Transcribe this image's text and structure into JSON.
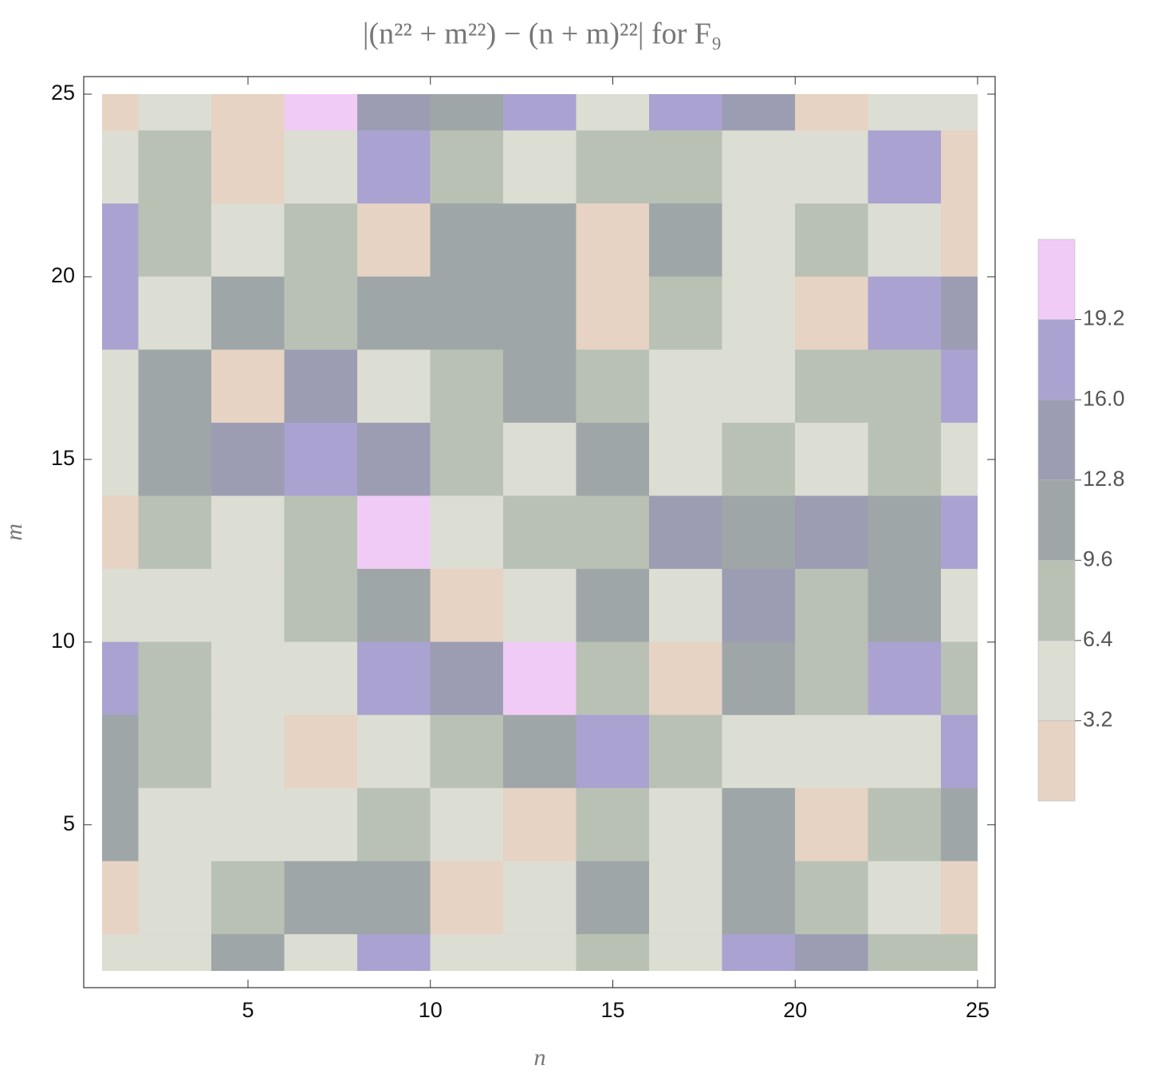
{
  "chart_data": {
    "type": "contour",
    "title": "|(n²² + m²²) − (n + m)²²|  for F₉",
    "x_label": "n",
    "y_label": "m",
    "xlim": [
      1,
      25
    ],
    "ylim": [
      1,
      25
    ],
    "xticks": [
      5,
      10,
      15,
      20,
      25
    ],
    "yticks": [
      5,
      10,
      15,
      20,
      25
    ],
    "x": [
      1,
      3,
      5,
      7,
      9,
      11,
      13,
      15,
      17,
      19,
      21,
      23,
      25
    ],
    "y": [
      25,
      23,
      21,
      19,
      17,
      15,
      13,
      11,
      9,
      7,
      5,
      3,
      1
    ],
    "z": [
      [
        2,
        5,
        2,
        20,
        15,
        11,
        17,
        5,
        19,
        13,
        2,
        5,
        5
      ],
      [
        6,
        8,
        2,
        5,
        16,
        8,
        5,
        9,
        9,
        5,
        5,
        18,
        2
      ],
      [
        17,
        9,
        5,
        9,
        2,
        12,
        12,
        3,
        11,
        5,
        8,
        5,
        2
      ],
      [
        17,
        5,
        11,
        8,
        12,
        12,
        12,
        2,
        8,
        5,
        2,
        17,
        14
      ],
      [
        5,
        11,
        2,
        13,
        5,
        8,
        12,
        8,
        5,
        5,
        9,
        8,
        17
      ],
      [
        4,
        11,
        14,
        17,
        14,
        9,
        5,
        12,
        5,
        8,
        5,
        8,
        5
      ],
      [
        2,
        8,
        5,
        8,
        21,
        5,
        8,
        8,
        14,
        11,
        13,
        11,
        17
      ],
      [
        5,
        5,
        5,
        8,
        11,
        2,
        5,
        11,
        5,
        13,
        8,
        11,
        5
      ],
      [
        17,
        8,
        5,
        5,
        17,
        14,
        20,
        8,
        2,
        12,
        8,
        17,
        8
      ],
      [
        11,
        8,
        4,
        2,
        5,
        8,
        12,
        17,
        8,
        5,
        5,
        5,
        18
      ],
      [
        11,
        5,
        5,
        5,
        8,
        5,
        2,
        8,
        5,
        11,
        2,
        8,
        11
      ],
      [
        2,
        5,
        8,
        12,
        12,
        2,
        5,
        11,
        5,
        11,
        8,
        5,
        2
      ],
      [
        5,
        5,
        11,
        5,
        17,
        5,
        5,
        8,
        5,
        17,
        14,
        8,
        8
      ]
    ],
    "clim": [
      0,
      22.4
    ],
    "cticks": [
      3.2,
      6.4,
      9.6,
      12.8,
      16.0
    ],
    "cticks_extra": [
      19.2
    ],
    "colors": [
      "#e6d3c3",
      "#dcddd3",
      "#b9c1b5",
      "#9ea6a8",
      "#9c9db2",
      "#aaa2d0",
      "#f0cbf5"
    ]
  }
}
